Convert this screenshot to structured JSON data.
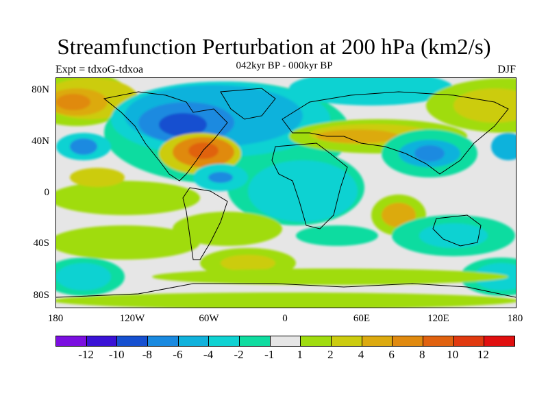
{
  "title": "Streamfunction Perturbation at 200 hPa (km2/s)",
  "subtitle": "042kyr BP - 000kyr BP",
  "left_label": "Expt = tdxoG-tdxoa",
  "right_label": "DJF",
  "lat_labels": [
    "80N",
    "40N",
    "0",
    "40S",
    "80S"
  ],
  "lon_labels": [
    "180",
    "120W",
    "60W",
    "0",
    "60E",
    "120E",
    "180"
  ],
  "colorbar": {
    "colors": [
      "#7b0fe0",
      "#3a12d6",
      "#1650d0",
      "#1a8ae0",
      "#11b2dc",
      "#10d2d2",
      "#10dca0",
      "#e6e6e6",
      "#a0dc10",
      "#cccc10",
      "#dcaa10",
      "#e08a10",
      "#e06210",
      "#e03a10",
      "#e01010"
    ],
    "labels": [
      "-12",
      "-10",
      "-8",
      "-6",
      "-4",
      "-2",
      "-1",
      "1",
      "2",
      "4",
      "6",
      "8",
      "10",
      "12"
    ]
  }
}
